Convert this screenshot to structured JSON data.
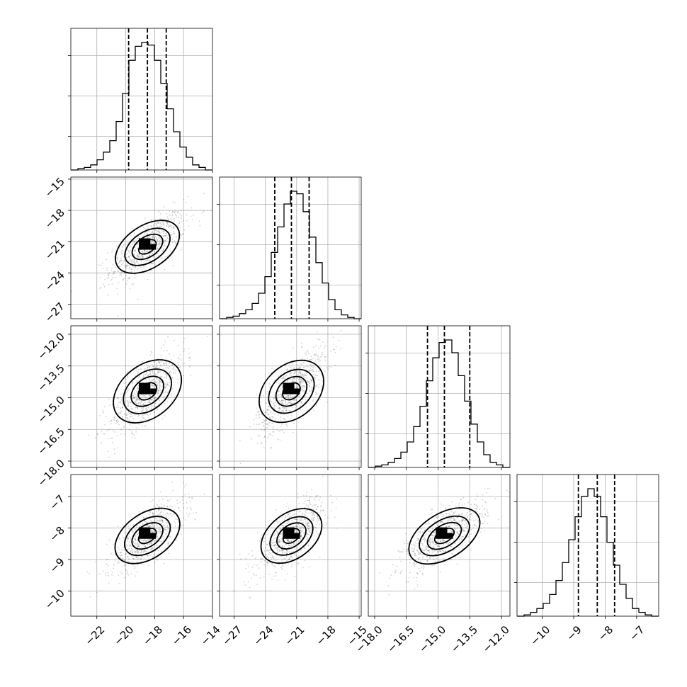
{
  "chart_data": {
    "type": "corner",
    "n_params": 4,
    "grid": true,
    "params": [
      {
        "range": [
          -23.8,
          -14.0
        ],
        "ticks": [
          -22,
          -20,
          -18,
          -16,
          -14
        ],
        "tick_labels": [
          "−22",
          "−20",
          "−18",
          "−16",
          "−14"
        ],
        "quantiles": [
          -19.8,
          -18.5,
          -17.2
        ],
        "hist": [
          0.01,
          0.02,
          0.04,
          0.08,
          0.14,
          0.23,
          0.38,
          0.6,
          0.86,
          0.97,
          1.0,
          0.98,
          0.86,
          0.68,
          0.48,
          0.3,
          0.18,
          0.1,
          0.04,
          0.02
        ]
      },
      {
        "range": [
          -28.4,
          -14.8
        ],
        "ticks": [
          -27,
          -24,
          -21,
          -18,
          -15
        ],
        "tick_labels": [
          "−27",
          "−24",
          "−21",
          "−18",
          "−15"
        ],
        "quantiles": [
          -23.1,
          -21.5,
          -19.8
        ],
        "hist": [
          0.01,
          0.02,
          0.04,
          0.07,
          0.12,
          0.2,
          0.33,
          0.52,
          0.72,
          0.9,
          1.0,
          0.98,
          0.84,
          0.64,
          0.44,
          0.28,
          0.15,
          0.07,
          0.03,
          0.01
        ]
      },
      {
        "range": [
          -18.3,
          -11.6
        ],
        "ticks": [
          -18.0,
          -16.5,
          -15.0,
          -13.5,
          -12.0
        ],
        "tick_labels": [
          "−18.0",
          "−16.5",
          "−15.0",
          "−13.5",
          "−12.0"
        ],
        "quantiles": [
          -15.5,
          -14.7,
          -13.5
        ],
        "hist": [
          0.01,
          0.02,
          0.04,
          0.07,
          0.12,
          0.2,
          0.32,
          0.48,
          0.68,
          0.86,
          0.98,
          1.0,
          0.9,
          0.72,
          0.52,
          0.34,
          0.2,
          0.1,
          0.04,
          0.02
        ]
      },
      {
        "range": [
          -10.8,
          -6.3
        ],
        "ticks": [
          -10,
          -9,
          -8,
          -7
        ],
        "tick_labels": [
          "−10",
          "−9",
          "−8",
          "−7"
        ],
        "quantiles": [
          -8.85,
          -8.25,
          -7.7
        ],
        "hist": [
          0.01,
          0.03,
          0.06,
          0.1,
          0.17,
          0.28,
          0.42,
          0.6,
          0.78,
          0.94,
          1.0,
          0.94,
          0.78,
          0.58,
          0.4,
          0.25,
          0.14,
          0.06,
          0.03,
          0.01
        ]
      }
    ],
    "correlation": 0.72
  }
}
